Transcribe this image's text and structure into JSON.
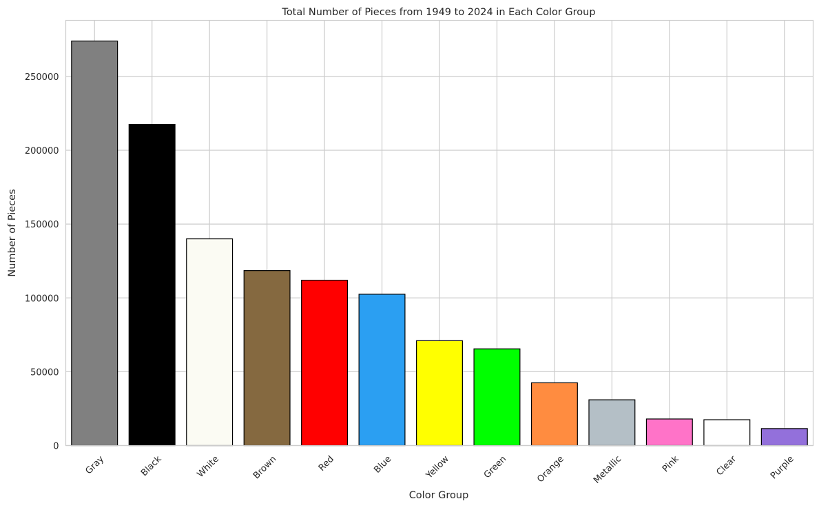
{
  "chart_data": {
    "type": "bar",
    "title": "Total Number of Pieces from 1949 to 2024 in Each Color Group",
    "xlabel": "Color Group",
    "ylabel": "Number of Pieces",
    "categories": [
      "Gray",
      "Black",
      "White",
      "Brown",
      "Red",
      "Blue",
      "Yellow",
      "Green",
      "Orange",
      "Metallic",
      "Pink",
      "Clear",
      "Purple"
    ],
    "values": [
      274000,
      217500,
      140000,
      118500,
      112000,
      102500,
      71000,
      65500,
      42500,
      31000,
      18000,
      17500,
      11500
    ],
    "bar_colors": [
      "#808080",
      "#000000",
      "#fbfbf3",
      "#856940",
      "#ff0000",
      "#2b9ff2",
      "#ffff00",
      "#00ff00",
      "#ff8c40",
      "#b4bfc6",
      "#ff73c8",
      "#ffffff",
      "#9370db"
    ],
    "edge_color": "#000000",
    "ylim": [
      0,
      288000
    ],
    "yticks": [
      0,
      50000,
      100000,
      150000,
      200000,
      250000
    ],
    "ytick_labels": [
      "0",
      "50000",
      "100000",
      "150000",
      "200000",
      "250000"
    ],
    "grid": true,
    "grid_color": "#cccccc",
    "axes_edge_color": "#cccccc",
    "xtick_rotation": 45
  }
}
